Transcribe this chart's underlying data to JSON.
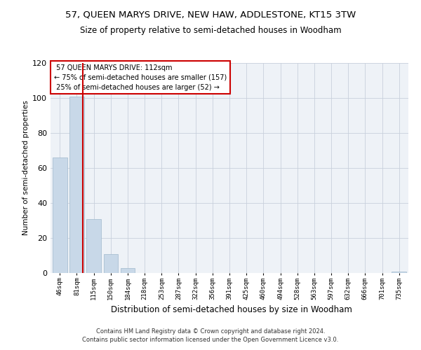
{
  "title": "57, QUEEN MARYS DRIVE, NEW HAW, ADDLESTONE, KT15 3TW",
  "subtitle": "Size of property relative to semi-detached houses in Woodham",
  "xlabel": "Distribution of semi-detached houses by size in Woodham",
  "ylabel": "Number of semi-detached properties",
  "bin_labels": [
    "46sqm",
    "81sqm",
    "115sqm",
    "150sqm",
    "184sqm",
    "218sqm",
    "253sqm",
    "287sqm",
    "322sqm",
    "356sqm",
    "391sqm",
    "425sqm",
    "460sqm",
    "494sqm",
    "528sqm",
    "563sqm",
    "597sqm",
    "632sqm",
    "666sqm",
    "701sqm",
    "735sqm"
  ],
  "bar_heights": [
    66,
    101,
    31,
    11,
    3,
    0,
    0,
    0,
    0,
    0,
    0,
    0,
    0,
    0,
    0,
    0,
    0,
    0,
    0,
    0,
    1
  ],
  "bar_color": "#c8d8e8",
  "bar_edgecolor": "#a0b8cc",
  "grid_color": "#c8d0dc",
  "background_color": "#eef2f7",
  "property_label": "57 QUEEN MARYS DRIVE: 112sqm",
  "pct_smaller": 75,
  "pct_smaller_count": 157,
  "pct_larger": 25,
  "pct_larger_count": 52,
  "vline_color": "#cc0000",
  "box_edgecolor": "#cc0000",
  "ylim": [
    0,
    120
  ],
  "yticks": [
    0,
    20,
    40,
    60,
    80,
    100,
    120
  ],
  "footer": "Contains HM Land Registry data © Crown copyright and database right 2024.\nContains public sector information licensed under the Open Government Licence v3.0.",
  "property_sqm": 112,
  "bin_start_sqm": [
    46,
    81,
    115,
    150,
    184,
    218,
    253,
    287,
    322,
    356,
    391,
    425,
    460,
    494,
    528,
    563,
    597,
    632,
    666,
    701,
    735
  ]
}
